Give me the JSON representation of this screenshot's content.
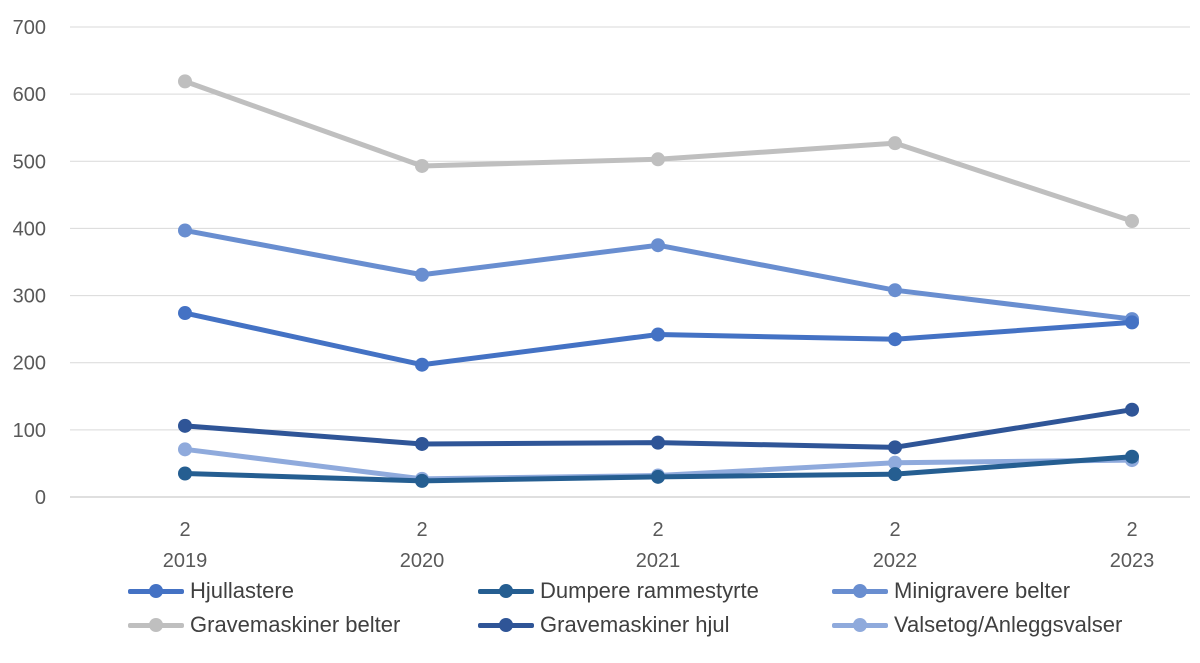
{
  "chart_data": {
    "type": "line",
    "title": "",
    "xlabel": "",
    "ylabel": "",
    "x_tick_top": [
      "2",
      "2",
      "2",
      "2",
      "2"
    ],
    "categories": [
      "2019",
      "2020",
      "2021",
      "2022",
      "2023"
    ],
    "ylim": [
      0,
      700
    ],
    "yticks": [
      "0",
      "100",
      "200",
      "300",
      "400",
      "500",
      "600",
      "700"
    ],
    "grid": true,
    "legend_position": "bottom",
    "series": [
      {
        "name": "Hjullastere",
        "color": "#4472C4",
        "values": [
          274,
          197,
          242,
          235,
          260
        ]
      },
      {
        "name": "Dumpere rammestyrte",
        "color": "#255E91",
        "values": [
          35,
          24,
          30,
          34,
          60
        ]
      },
      {
        "name": "Minigravere belter",
        "color": "#698ED0",
        "values": [
          397,
          331,
          375,
          308,
          265
        ]
      },
      {
        "name": "Gravemaskiner belter",
        "color": "#BFBFBF",
        "values": [
          619,
          493,
          503,
          527,
          411
        ]
      },
      {
        "name": "Gravemaskiner hjul",
        "color": "#2F5597",
        "values": [
          106,
          79,
          81,
          74,
          130
        ]
      },
      {
        "name": "Valsetog/Anleggsvalser",
        "color": "#8FAADC",
        "values": [
          71,
          27,
          32,
          51,
          55
        ]
      }
    ]
  }
}
